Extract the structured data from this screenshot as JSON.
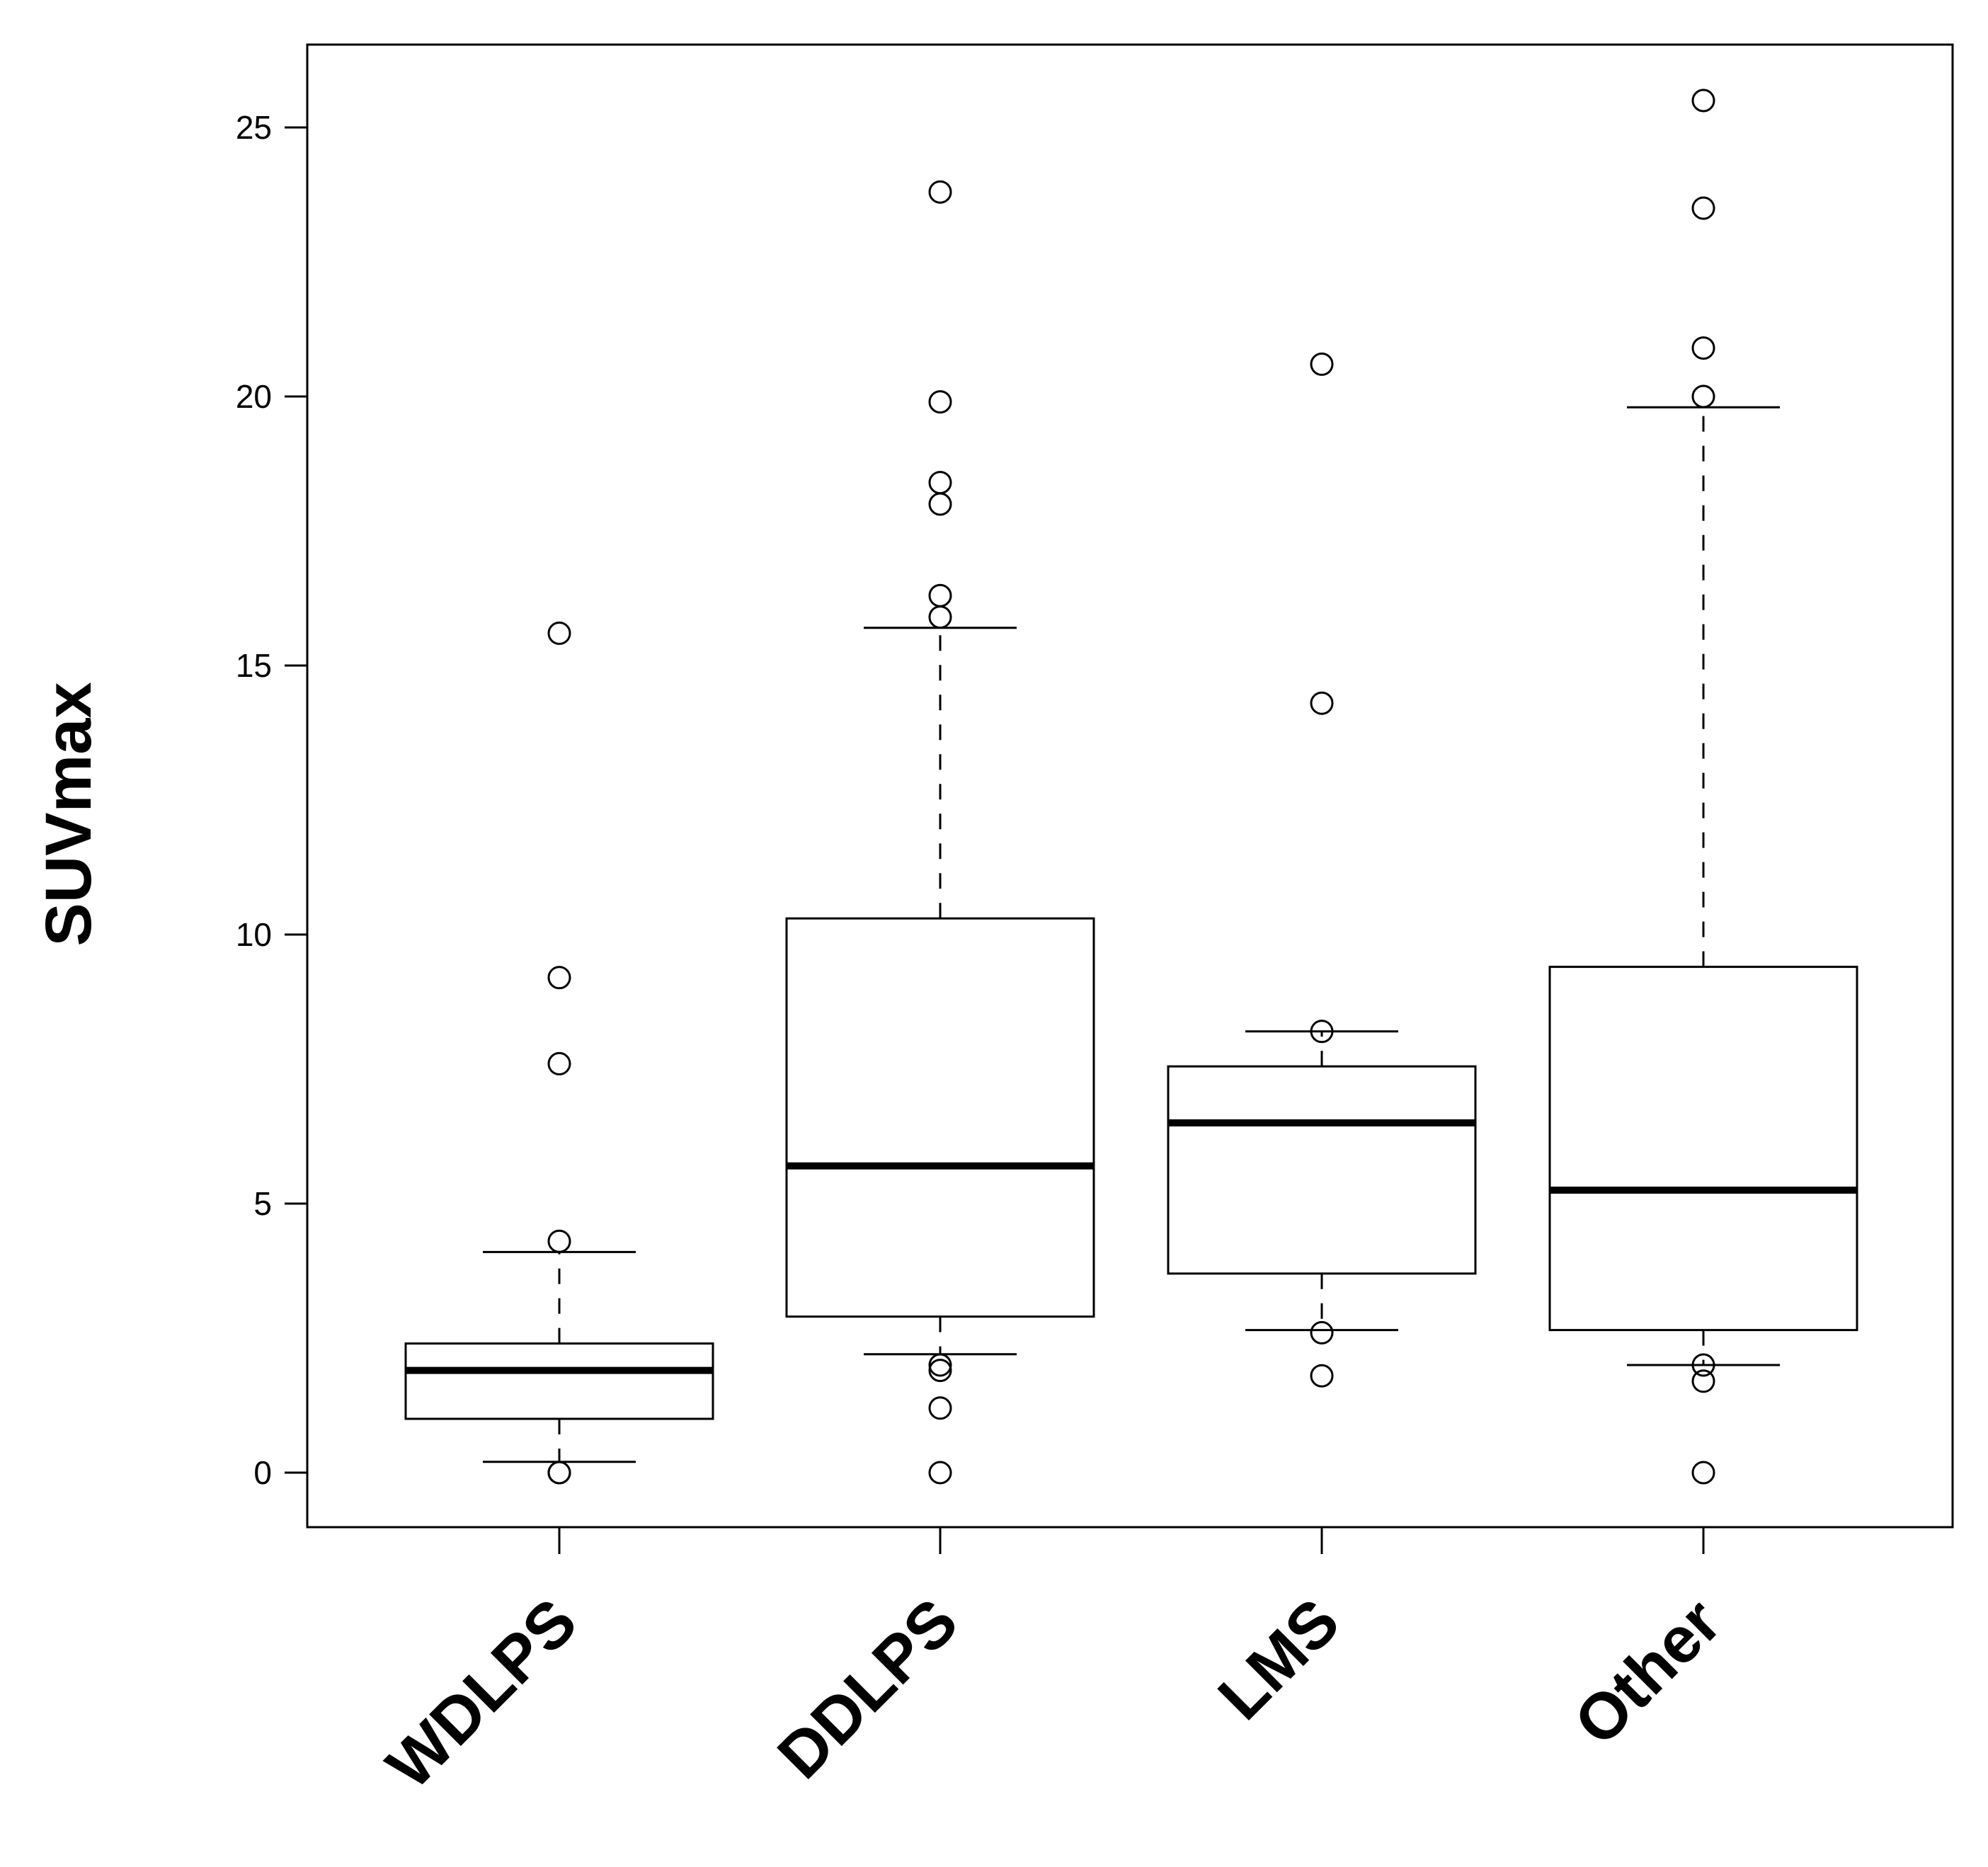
{
  "chart_data": {
    "type": "boxplot",
    "title": "",
    "xlabel": "",
    "ylabel": "SUVmax",
    "ylim": [
      -1,
      26.5
    ],
    "yticks": [
      0,
      5,
      10,
      15,
      20,
      25
    ],
    "grid": false,
    "categories": [
      "WDLPS",
      "DDLPS",
      "LMS",
      "Other"
    ],
    "boxes": [
      {
        "name": "WDLPS",
        "whisker_low": 0.2,
        "q1": 1.0,
        "median": 1.9,
        "q3": 2.4,
        "whisker_high": 4.1,
        "outliers": [
          0,
          0,
          4.3,
          7.6,
          9.2,
          15.6
        ]
      },
      {
        "name": "DDLPS",
        "whisker_low": 2.2,
        "q1": 2.9,
        "median": 5.7,
        "q3": 10.3,
        "whisker_high": 15.7,
        "outliers": [
          0,
          1.2,
          1.9,
          2.0,
          15.9,
          16.3,
          18.0,
          18.4,
          19.9,
          23.8
        ]
      },
      {
        "name": "LMS",
        "whisker_low": 2.65,
        "q1": 3.7,
        "median": 6.5,
        "q3": 7.55,
        "whisker_high": 8.2,
        "outliers": [
          1.8,
          2.6,
          8.2,
          14.3,
          20.6
        ]
      },
      {
        "name": "Other",
        "whisker_low": 2.0,
        "q1": 2.65,
        "median": 5.25,
        "q3": 9.4,
        "whisker_high": 19.8,
        "outliers": [
          0,
          1.7,
          2.0,
          20.0,
          20.9,
          23.5,
          25.5
        ]
      }
    ]
  }
}
